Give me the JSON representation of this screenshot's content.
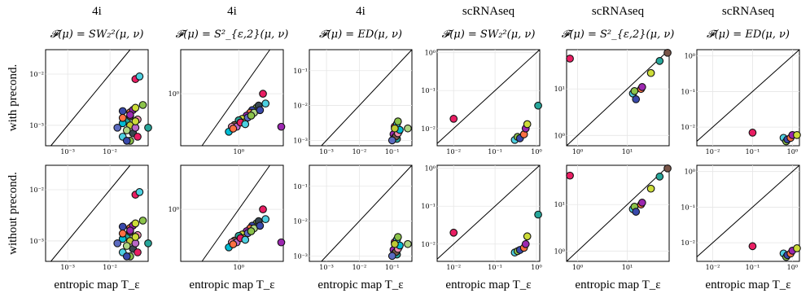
{
  "figure": {
    "row_labels": [
      "with precond.",
      "without precond."
    ],
    "x_axis_label": "entropic map T_ε"
  },
  "columns": [
    {
      "dataset": "4i",
      "objective": "𝓕(μ) = SW₂²(μ, ν)"
    },
    {
      "dataset": "4i",
      "objective": "𝓕(μ) = S²_{ε,2}(μ, ν)"
    },
    {
      "dataset": "4i",
      "objective": "𝓕(μ) = ED(μ, ν)"
    },
    {
      "dataset": "scRNAseq",
      "objective": "𝓕(μ) = SW₂²(μ, ν)"
    },
    {
      "dataset": "scRNAseq",
      "objective": "𝓕(μ) = S²_{ε,2}(μ, ν)"
    },
    {
      "dataset": "scRNAseq",
      "objective": "𝓕(μ) = ED(μ, ν)"
    }
  ],
  "palette": [
    "#e91e63",
    "#4dd0e1",
    "#8bc34a",
    "#3949ab",
    "#ff7043",
    "#9c27b0",
    "#cddc39",
    "#26a69a",
    "#795548",
    "#f48fb1",
    "#00bcd4",
    "#c0ca33",
    "#5c6bc0",
    "#aed581",
    "#37474f",
    "#ba68c8"
  ],
  "chart_data": [
    {
      "type": "scatter",
      "title": "4i  𝓕(μ) = SW₂²(μ, ν)",
      "row": "with precond.",
      "xscale": "log",
      "yscale": "log",
      "xlim": [
        0.0003,
        0.08
      ],
      "ylim": [
        0.0004,
        0.03
      ],
      "xticks": [
        0.001,
        0.01
      ],
      "xtick_labels": [
        "10⁻³",
        "10⁻²"
      ],
      "yticks": [
        0.001,
        0.01
      ],
      "ytick_labels": [
        "10⁻³",
        "10⁻²"
      ],
      "x": [
        0.04,
        0.05,
        0.06,
        0.02,
        0.03,
        0.035,
        0.04,
        0.025,
        0.03,
        0.045,
        0.02,
        0.03,
        0.015,
        0.025,
        0.035,
        0.04,
        0.045,
        0.02,
        0.03,
        0.025,
        0.02,
        0.03,
        0.04,
        0.08
      ],
      "y": [
        0.008,
        0.009,
        0.0025,
        0.0019,
        0.0018,
        0.002,
        0.0022,
        0.0012,
        0.0015,
        0.0013,
        0.0011,
        0.001,
        0.0009,
        0.0008,
        0.0007,
        0.0009,
        0.0006,
        0.0006,
        0.0005,
        0.0005,
        0.0014,
        0.0016,
        0.0012,
        0.0009
      ]
    },
    {
      "type": "scatter",
      "title": "4i  𝓕(μ) = S²_{ε,2}(μ, ν)",
      "row": "with precond.",
      "xscale": "log",
      "yscale": "log",
      "xlim": [
        0.05,
        10
      ],
      "ylim": [
        0.15,
        5
      ],
      "xticks": [
        1
      ],
      "xtick_labels": [
        "10⁰"
      ],
      "yticks": [
        1
      ],
      "ytick_labels": [
        "10⁰"
      ],
      "x": [
        3.5,
        4,
        2.5,
        2,
        1.8,
        1.5,
        1.2,
        1,
        0.8,
        0.7,
        0.6,
        1.3,
        1.6,
        2.2,
        2.8,
        0.9,
        1.1,
        1.4,
        1.9,
        3,
        0.75,
        9
      ],
      "y": [
        1,
        0.7,
        0.6,
        0.55,
        0.5,
        0.45,
        0.4,
        0.38,
        0.32,
        0.3,
        0.25,
        0.35,
        0.42,
        0.5,
        0.65,
        0.3,
        0.35,
        0.33,
        0.45,
        0.55,
        0.28,
        0.3
      ]
    },
    {
      "type": "scatter",
      "title": "4i  𝓕(μ) = ED(μ, ν)",
      "row": "with precond.",
      "xscale": "log",
      "yscale": "log",
      "xlim": [
        0.0003,
        0.4
      ],
      "ylim": [
        0.0007,
        0.4
      ],
      "xticks": [
        0.001,
        0.01,
        0.1
      ],
      "xtick_labels": [
        "10⁻³",
        "10⁻²",
        "10⁻¹"
      ],
      "yticks": [
        0.001,
        0.01,
        0.1
      ],
      "ytick_labels": [
        "10⁻³",
        "10⁻²",
        "10⁻¹"
      ],
      "x": [
        0.12,
        0.14,
        0.15,
        0.13,
        0.16,
        0.11,
        0.12,
        0.14,
        0.13,
        0.15,
        0.17,
        0.12,
        0.1,
        0.3
      ],
      "y": [
        0.0025,
        0.003,
        0.0035,
        0.002,
        0.0018,
        0.0015,
        0.0012,
        0.0011,
        0.0013,
        0.0016,
        0.002,
        0.0022,
        0.001,
        0.0022
      ]
    },
    {
      "type": "scatter",
      "title": "scRNAseq  𝓕(μ) = SW₂²(μ, ν)",
      "row": "with precond.",
      "xscale": "log",
      "yscale": "log",
      "xlim": [
        0.004,
        1.2
      ],
      "ylim": [
        0.0035,
        1.2
      ],
      "xticks": [
        0.01,
        0.1,
        1
      ],
      "xtick_labels": [
        "10⁻²",
        "10⁻¹",
        "10⁰"
      ],
      "yticks": [
        0.01,
        0.1,
        1
      ],
      "ytick_labels": [
        "10⁻²",
        "10⁻¹",
        "10⁰"
      ],
      "x": [
        0.01,
        0.3,
        0.35,
        0.4,
        0.5,
        0.55,
        0.6,
        1.1
      ],
      "y": [
        0.018,
        0.005,
        0.006,
        0.0055,
        0.007,
        0.01,
        0.013,
        0.04
      ]
    },
    {
      "type": "scatter",
      "title": "scRNAseq  𝓕(μ) = S²_{ε,2}(μ, ν)",
      "row": "with precond.",
      "xscale": "log",
      "yscale": "log",
      "xlim": [
        0.6,
        70
      ],
      "ylim": [
        0.6,
        70
      ],
      "xticks": [
        1,
        10
      ],
      "xtick_labels": [
        "10⁰",
        "10¹"
      ],
      "yticks": [
        1,
        10
      ],
      "ytick_labels": [
        "10⁰",
        "10¹"
      ],
      "x": [
        0.7,
        13,
        14,
        15,
        19,
        20,
        30,
        45,
        65
      ],
      "y": [
        45,
        8,
        9,
        6,
        10,
        11,
        22,
        40,
        60
      ]
    },
    {
      "type": "scatter",
      "title": "scRNAseq  𝓕(μ) = ED(μ, ν)",
      "row": "with precond.",
      "xscale": "log",
      "yscale": "log",
      "xlim": [
        0.004,
        1.5
      ],
      "ylim": [
        0.003,
        1.5
      ],
      "xticks": [
        0.01,
        0.1,
        1
      ],
      "xtick_labels": [
        "10⁻²",
        "10⁻¹",
        "10⁰"
      ],
      "yticks": [
        0.01,
        0.1,
        1
      ],
      "ytick_labels": [
        "10⁻²",
        "10⁻¹",
        "10⁰"
      ],
      "x": [
        0.1,
        0.6,
        0.7,
        0.75,
        0.9,
        1.0,
        1.3
      ],
      "y": [
        0.007,
        0.005,
        0.004,
        0.0045,
        0.005,
        0.006,
        0.006
      ]
    },
    {
      "type": "scatter",
      "title": "4i  𝓕(μ) = SW₂²(μ, ν)",
      "row": "without precond.",
      "xscale": "log",
      "yscale": "log",
      "xlim": [
        0.0003,
        0.08
      ],
      "ylim": [
        0.0004,
        0.03
      ],
      "xticks": [
        0.001,
        0.01
      ],
      "xtick_labels": [
        "10⁻³",
        "10⁻²"
      ],
      "yticks": [
        0.001,
        0.01
      ],
      "ytick_labels": [
        "10⁻³",
        "10⁻²"
      ],
      "x": [
        0.04,
        0.05,
        0.06,
        0.02,
        0.03,
        0.035,
        0.04,
        0.025,
        0.03,
        0.045,
        0.02,
        0.03,
        0.015,
        0.025,
        0.035,
        0.04,
        0.045,
        0.02,
        0.03,
        0.025,
        0.02,
        0.03,
        0.04,
        0.08
      ],
      "y": [
        0.008,
        0.009,
        0.0025,
        0.0019,
        0.0018,
        0.002,
        0.0022,
        0.0012,
        0.0015,
        0.0013,
        0.0011,
        0.001,
        0.0009,
        0.0008,
        0.0007,
        0.0009,
        0.0006,
        0.0006,
        0.0005,
        0.0005,
        0.0014,
        0.0016,
        0.0012,
        0.0009
      ]
    },
    {
      "type": "scatter",
      "title": "4i  𝓕(μ) = S²_{ε,2}(μ, ν)",
      "row": "without precond.",
      "xscale": "log",
      "yscale": "log",
      "xlim": [
        0.05,
        10
      ],
      "ylim": [
        0.15,
        5
      ],
      "xticks": [
        1
      ],
      "xtick_labels": [
        "10⁰"
      ],
      "yticks": [
        1
      ],
      "ytick_labels": [
        "10⁰"
      ],
      "x": [
        3.5,
        4,
        2.5,
        2,
        1.8,
        1.5,
        1.2,
        1,
        0.8,
        0.7,
        0.6,
        1.3,
        1.6,
        2.2,
        2.8,
        0.9,
        1.1,
        1.4,
        1.9,
        3,
        0.75,
        9
      ],
      "y": [
        1,
        0.7,
        0.6,
        0.55,
        0.5,
        0.45,
        0.4,
        0.38,
        0.32,
        0.3,
        0.25,
        0.35,
        0.42,
        0.5,
        0.65,
        0.3,
        0.35,
        0.33,
        0.45,
        0.55,
        0.28,
        0.3
      ]
    },
    {
      "type": "scatter",
      "title": "4i  𝓕(μ) = ED(μ, ν)",
      "row": "without precond.",
      "xscale": "log",
      "yscale": "log",
      "xlim": [
        0.0003,
        0.4
      ],
      "ylim": [
        0.0007,
        0.4
      ],
      "xticks": [
        0.001,
        0.01,
        0.1
      ],
      "xtick_labels": [
        "10⁻³",
        "10⁻²",
        "10⁻¹"
      ],
      "yticks": [
        0.001,
        0.01,
        0.1
      ],
      "ytick_labels": [
        "10⁻³",
        "10⁻²",
        "10⁻¹"
      ],
      "x": [
        0.12,
        0.14,
        0.15,
        0.13,
        0.16,
        0.11,
        0.12,
        0.14,
        0.13,
        0.15,
        0.17,
        0.12,
        0.1,
        0.3
      ],
      "y": [
        0.0025,
        0.003,
        0.0035,
        0.002,
        0.0018,
        0.0015,
        0.0012,
        0.0011,
        0.0013,
        0.0016,
        0.002,
        0.0022,
        0.001,
        0.0022
      ]
    },
    {
      "type": "scatter",
      "title": "scRNAseq  𝓕(μ) = SW₂²(μ, ν)",
      "row": "without precond.",
      "xscale": "log",
      "yscale": "log",
      "xlim": [
        0.004,
        1.2
      ],
      "ylim": [
        0.0035,
        1.2
      ],
      "xticks": [
        0.01,
        0.1,
        1
      ],
      "xtick_labels": [
        "10⁻²",
        "10⁻¹",
        "10⁰"
      ],
      "yticks": [
        0.01,
        0.1,
        1
      ],
      "ytick_labels": [
        "10⁻²",
        "10⁻¹",
        "10⁰"
      ],
      "x": [
        0.01,
        0.3,
        0.35,
        0.4,
        0.5,
        0.55,
        0.6,
        1.1
      ],
      "y": [
        0.02,
        0.006,
        0.0065,
        0.007,
        0.008,
        0.01,
        0.016,
        0.06
      ]
    },
    {
      "type": "scatter",
      "title": "scRNAseq  𝓕(μ) = S²_{ε,2}(μ, ν)",
      "row": "without precond.",
      "xscale": "log",
      "yscale": "log",
      "xlim": [
        0.6,
        70
      ],
      "ylim": [
        0.6,
        70
      ],
      "xticks": [
        1,
        10
      ],
      "xtick_labels": [
        "10⁰",
        "10¹"
      ],
      "yticks": [
        1,
        10
      ],
      "ytick_labels": [
        "10⁰",
        "10¹"
      ],
      "x": [
        0.7,
        13,
        14,
        15,
        19,
        20,
        30,
        45,
        65
      ],
      "y": [
        42,
        8,
        9,
        7,
        10,
        11,
        22,
        40,
        60
      ]
    },
    {
      "type": "scatter",
      "title": "scRNAseq  𝓕(μ) = ED(μ, ν)",
      "row": "without precond.",
      "xscale": "log",
      "yscale": "log",
      "xlim": [
        0.004,
        1.5
      ],
      "ylim": [
        0.003,
        1.5
      ],
      "xticks": [
        0.01,
        0.1,
        1
      ],
      "xtick_labels": [
        "10⁻²",
        "10⁻¹",
        "10⁰"
      ],
      "yticks": [
        0.01,
        0.1,
        1
      ],
      "ytick_labels": [
        "10⁻²",
        "10⁻¹",
        "10⁰"
      ],
      "x": [
        0.1,
        0.6,
        0.7,
        0.75,
        0.9,
        1.0,
        1.3
      ],
      "y": [
        0.008,
        0.005,
        0.004,
        0.0045,
        0.005,
        0.006,
        0.007
      ]
    }
  ]
}
